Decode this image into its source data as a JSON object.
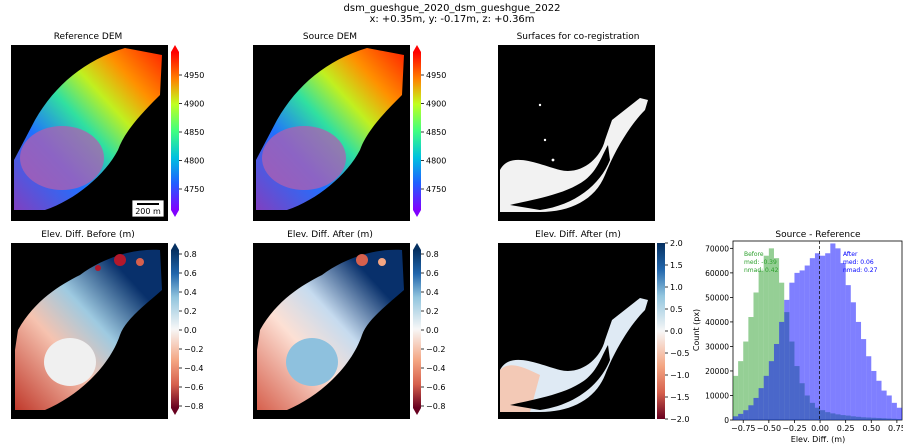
{
  "suptitle": {
    "line1": "dsm_gueshgue_2020_dsm_gueshgue_2022",
    "line2": "x: +0.35m, y: -0.17m, z: +0.36m"
  },
  "panels": {
    "ref_dem": {
      "title": "Reference DEM",
      "scalebar": "200 m"
    },
    "src_dem": {
      "title": "Source DEM"
    },
    "surfaces": {
      "title": "Surfaces for co-registration"
    },
    "diff_before": {
      "title": "Elev. Diff. Before (m)"
    },
    "diff_after": {
      "title": "Elev. Diff. After (m)"
    },
    "diff_after2": {
      "title": "Elev. Diff. After (m)"
    },
    "hist": {
      "title": "Source - Reference"
    }
  },
  "colorbars": {
    "dem": {
      "ticks": [
        "4950",
        "4900",
        "4850",
        "4800",
        "4750"
      ],
      "colormap": "rainbow"
    },
    "diff": {
      "ticks": [
        "0.8",
        "0.6",
        "0.4",
        "0.2",
        "0.0",
        "−0.2",
        "−0.4",
        "−0.6",
        "−0.8"
      ],
      "colormap": "RdBu"
    },
    "diff2": {
      "ticks": [
        "2.0",
        "1.5",
        "1.0",
        "0.5",
        "0.0",
        "−0.5",
        "−1.0",
        "−1.5",
        "−2.0"
      ],
      "colormap": "RdBu"
    }
  },
  "chart_data": {
    "type": "bar",
    "title": "Source - Reference",
    "xlabel": "Elev. Diff. (m)",
    "ylabel": "Count (px)",
    "xlim": [
      -0.85,
      0.8
    ],
    "ylim": [
      0,
      73000
    ],
    "xticks": [
      "−0.75",
      "−0.50",
      "−0.25",
      "0.00",
      "0.25",
      "0.50",
      "0.75"
    ],
    "yticks": [
      "0",
      "10000",
      "20000",
      "30000",
      "40000",
      "50000",
      "60000",
      "70000"
    ],
    "series": [
      {
        "name": "Before",
        "color": "#2ca02c",
        "stats": [
          "Before",
          "med: -0.39",
          "nmad: 0.42"
        ],
        "x": [
          -0.85,
          -0.8,
          -0.75,
          -0.7,
          -0.65,
          -0.6,
          -0.55,
          -0.5,
          -0.45,
          -0.4,
          -0.35,
          -0.3,
          -0.25,
          -0.2,
          -0.15,
          -0.1,
          -0.05,
          0.0,
          0.05,
          0.1,
          0.15,
          0.2,
          0.25,
          0.3,
          0.35,
          0.4,
          0.45,
          0.5,
          0.55,
          0.6,
          0.65,
          0.7,
          0.75
        ],
        "values": [
          18000,
          24000,
          32000,
          42000,
          52000,
          61000,
          67000,
          70000,
          66000,
          56000,
          44000,
          32000,
          22000,
          15000,
          10000,
          7000,
          5000,
          4000,
          3200,
          2700,
          2300,
          2000,
          1800,
          1500,
          1300,
          1100,
          1000,
          900,
          800,
          700,
          600,
          500,
          400
        ]
      },
      {
        "name": "After",
        "color": "#0000ff",
        "stats": [
          "After",
          "med: 0.06",
          "nmad: 0.27"
        ],
        "x": [
          -0.85,
          -0.8,
          -0.75,
          -0.7,
          -0.65,
          -0.6,
          -0.55,
          -0.5,
          -0.45,
          -0.4,
          -0.35,
          -0.3,
          -0.25,
          -0.2,
          -0.15,
          -0.1,
          -0.05,
          0.0,
          0.05,
          0.1,
          0.15,
          0.2,
          0.25,
          0.3,
          0.35,
          0.4,
          0.45,
          0.5,
          0.55,
          0.6,
          0.65,
          0.7,
          0.75
        ],
        "values": [
          1500,
          2500,
          4000,
          6000,
          9000,
          13000,
          18000,
          24000,
          31000,
          40000,
          49000,
          56000,
          60000,
          61000,
          63000,
          66000,
          68000,
          67000,
          68000,
          72000,
          70000,
          64000,
          55000,
          48000,
          40000,
          33000,
          26000,
          20000,
          16000,
          12000,
          10000,
          7000,
          5000
        ]
      }
    ]
  }
}
